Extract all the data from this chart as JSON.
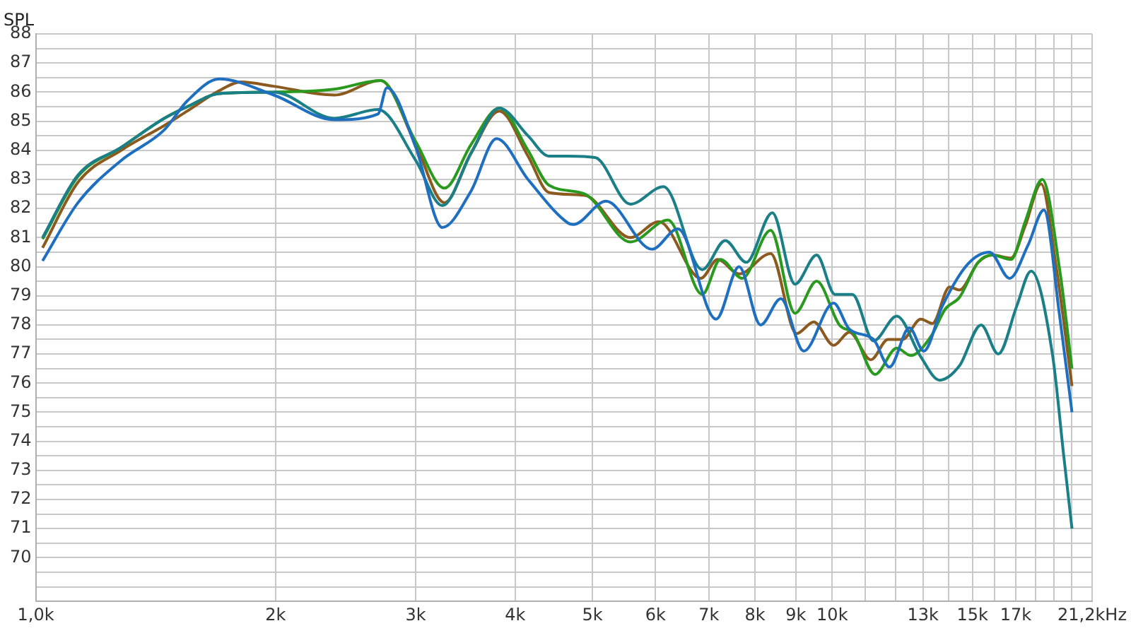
{
  "chart_data": {
    "type": "line",
    "ylabel": "SPL",
    "log": "x",
    "grid": true,
    "legend": false,
    "marker": "none",
    "line_style": "solid",
    "xlim": [
      1.0,
      21.2
    ],
    "xticks": [
      {
        "value": 1.0,
        "label": "1,0k"
      },
      {
        "value": 2,
        "label": "2k"
      },
      {
        "value": 3,
        "label": "3k"
      },
      {
        "value": 4,
        "label": "4k"
      },
      {
        "value": 5,
        "label": "5k"
      },
      {
        "value": 6,
        "label": "6k"
      },
      {
        "value": 7,
        "label": "7k"
      },
      {
        "value": 8,
        "label": "8k"
      },
      {
        "value": 9,
        "label": "9k"
      },
      {
        "value": 10,
        "label": "10k"
      },
      {
        "value": 11,
        "label": null
      },
      {
        "value": 12,
        "label": null
      },
      {
        "value": 13,
        "label": "13k"
      },
      {
        "value": 14,
        "label": null
      },
      {
        "value": 15,
        "label": "15k"
      },
      {
        "value": 16,
        "label": null
      },
      {
        "value": 17,
        "label": "17k"
      },
      {
        "value": 18,
        "label": null
      },
      {
        "value": 19,
        "label": null
      },
      {
        "value": 20,
        "label": null
      },
      {
        "value": 21.2,
        "label": "21,2kHz"
      }
    ],
    "ylim": [
      68.5,
      88
    ],
    "yticks": [
      {
        "value": 69,
        "label": null
      },
      {
        "value": 69.5,
        "label": null
      },
      70,
      {
        "value": 70.5,
        "label": null
      },
      71,
      {
        "value": 71.5,
        "label": null
      },
      72,
      {
        "value": 72.5,
        "label": null
      },
      73,
      {
        "value": 73.5,
        "label": null
      },
      74,
      {
        "value": 74.5,
        "label": null
      },
      75,
      {
        "value": 75.5,
        "label": null
      },
      76,
      {
        "value": 76.5,
        "label": null
      },
      77,
      {
        "value": 77.5,
        "label": null
      },
      78,
      {
        "value": 78.5,
        "label": null
      },
      79,
      {
        "value": 79.5,
        "label": null
      },
      80,
      {
        "value": 80.5,
        "label": null
      },
      81,
      {
        "value": 81.5,
        "label": null
      },
      82,
      {
        "value": 82.5,
        "label": null
      },
      83,
      {
        "value": 83.5,
        "label": null
      },
      84,
      {
        "value": 84.5,
        "label": null
      },
      85,
      {
        "value": 85.5,
        "label": null
      },
      86,
      {
        "value": 86.5,
        "label": null
      },
      87,
      {
        "value": 87.5,
        "label": null
      },
      88
    ],
    "series": [
      {
        "color": "#1f6fc0",
        "x": [
          1.02,
          1.13,
          1.28,
          1.45,
          1.55,
          1.7,
          1.99,
          2.37,
          2.69,
          2.76,
          3.0,
          3.24,
          3.52,
          3.79,
          4.15,
          4.66,
          4.73,
          5.2,
          5.94,
          6.4,
          7.15,
          7.64,
          8.13,
          8.62,
          9.21,
          10.04,
          10.51,
          11.27,
          11.8,
          12.5,
          13.03,
          13.75,
          14.81,
          15.76,
          16.7,
          17.62,
          18.44,
          19.3,
          20.0
        ],
        "values": [
          80.2,
          82.2,
          83.65,
          84.7,
          85.7,
          86.45,
          85.9,
          85.05,
          85.25,
          86.15,
          84.1,
          81.35,
          82.6,
          84.4,
          83.0,
          81.5,
          81.45,
          82.25,
          80.6,
          81.3,
          78.2,
          80.0,
          78.0,
          78.9,
          77.1,
          78.75,
          77.85,
          77.5,
          76.55,
          77.9,
          77.1,
          78.65,
          80.1,
          80.5,
          79.6,
          80.75,
          81.95,
          78.3,
          75.0
        ]
      },
      {
        "color": "#1a7f86",
        "x": [
          1.02,
          1.13,
          1.28,
          1.45,
          1.55,
          1.7,
          1.99,
          2.37,
          2.69,
          3.0,
          3.24,
          3.52,
          3.82,
          4.15,
          4.41,
          4.66,
          5.04,
          5.58,
          6.14,
          6.87,
          7.34,
          7.8,
          8.41,
          8.98,
          9.56,
          10.08,
          10.6,
          11.27,
          12.05,
          12.92,
          13.64,
          14.45,
          15.38,
          16.16,
          17.05,
          17.77,
          18.9,
          19.53,
          20.0
        ],
        "values": [
          81.0,
          83.15,
          84.1,
          85.1,
          85.5,
          85.95,
          86.0,
          85.1,
          85.4,
          83.65,
          82.1,
          83.9,
          85.45,
          84.5,
          83.8,
          83.8,
          83.75,
          82.15,
          82.75,
          79.9,
          80.9,
          80.15,
          81.85,
          79.4,
          80.4,
          79.05,
          79.05,
          77.45,
          78.3,
          76.9,
          76.1,
          76.6,
          78.0,
          77.0,
          78.65,
          79.85,
          77.0,
          73.5,
          71.0
        ]
      },
      {
        "color": "#2a9a1f",
        "x": [
          1.02,
          1.13,
          1.28,
          1.45,
          1.55,
          1.7,
          1.99,
          2.37,
          2.71,
          3.0,
          3.26,
          3.52,
          3.82,
          4.15,
          4.41,
          4.89,
          5.58,
          6.22,
          6.87,
          7.24,
          7.71,
          8.37,
          8.98,
          9.56,
          10.21,
          10.64,
          11.32,
          12.05,
          12.55,
          13.3,
          13.87,
          14.45,
          15.25,
          15.89,
          16.77,
          17.47,
          18.36,
          19.3,
          20.0
        ],
        "values": [
          80.95,
          83.1,
          84.1,
          85.1,
          85.5,
          85.95,
          86.0,
          86.1,
          86.4,
          84.3,
          82.7,
          84.2,
          85.45,
          84.0,
          82.8,
          82.5,
          80.85,
          81.6,
          79.05,
          80.25,
          79.6,
          81.25,
          78.4,
          79.5,
          78.0,
          77.7,
          76.3,
          77.2,
          76.95,
          77.6,
          78.55,
          78.95,
          80.15,
          80.4,
          80.25,
          81.55,
          83.0,
          79.9,
          76.5
        ]
      },
      {
        "color": "#8b5a1e",
        "x": [
          1.02,
          1.13,
          1.28,
          1.45,
          1.55,
          1.7,
          1.81,
          1.99,
          2.37,
          2.71,
          3.0,
          3.26,
          3.52,
          3.82,
          4.15,
          4.41,
          4.89,
          5.58,
          6.06,
          6.84,
          7.18,
          7.64,
          8.37,
          9.02,
          9.48,
          10.04,
          10.51,
          11.18,
          11.75,
          12.25,
          12.92,
          13.36,
          14.04,
          14.45,
          15.25,
          15.89,
          16.77,
          17.47,
          18.29,
          19.13,
          20.0
        ],
        "values": [
          80.65,
          82.9,
          84.0,
          84.85,
          85.35,
          86.05,
          86.35,
          86.2,
          85.9,
          86.4,
          84.2,
          82.2,
          83.9,
          85.35,
          83.8,
          82.55,
          82.45,
          81.0,
          81.55,
          79.6,
          80.25,
          79.75,
          80.45,
          77.7,
          78.1,
          77.3,
          77.75,
          76.8,
          77.5,
          77.5,
          78.2,
          78.05,
          79.3,
          79.2,
          80.15,
          80.4,
          80.3,
          81.4,
          82.85,
          79.9,
          75.9
        ]
      }
    ]
  }
}
